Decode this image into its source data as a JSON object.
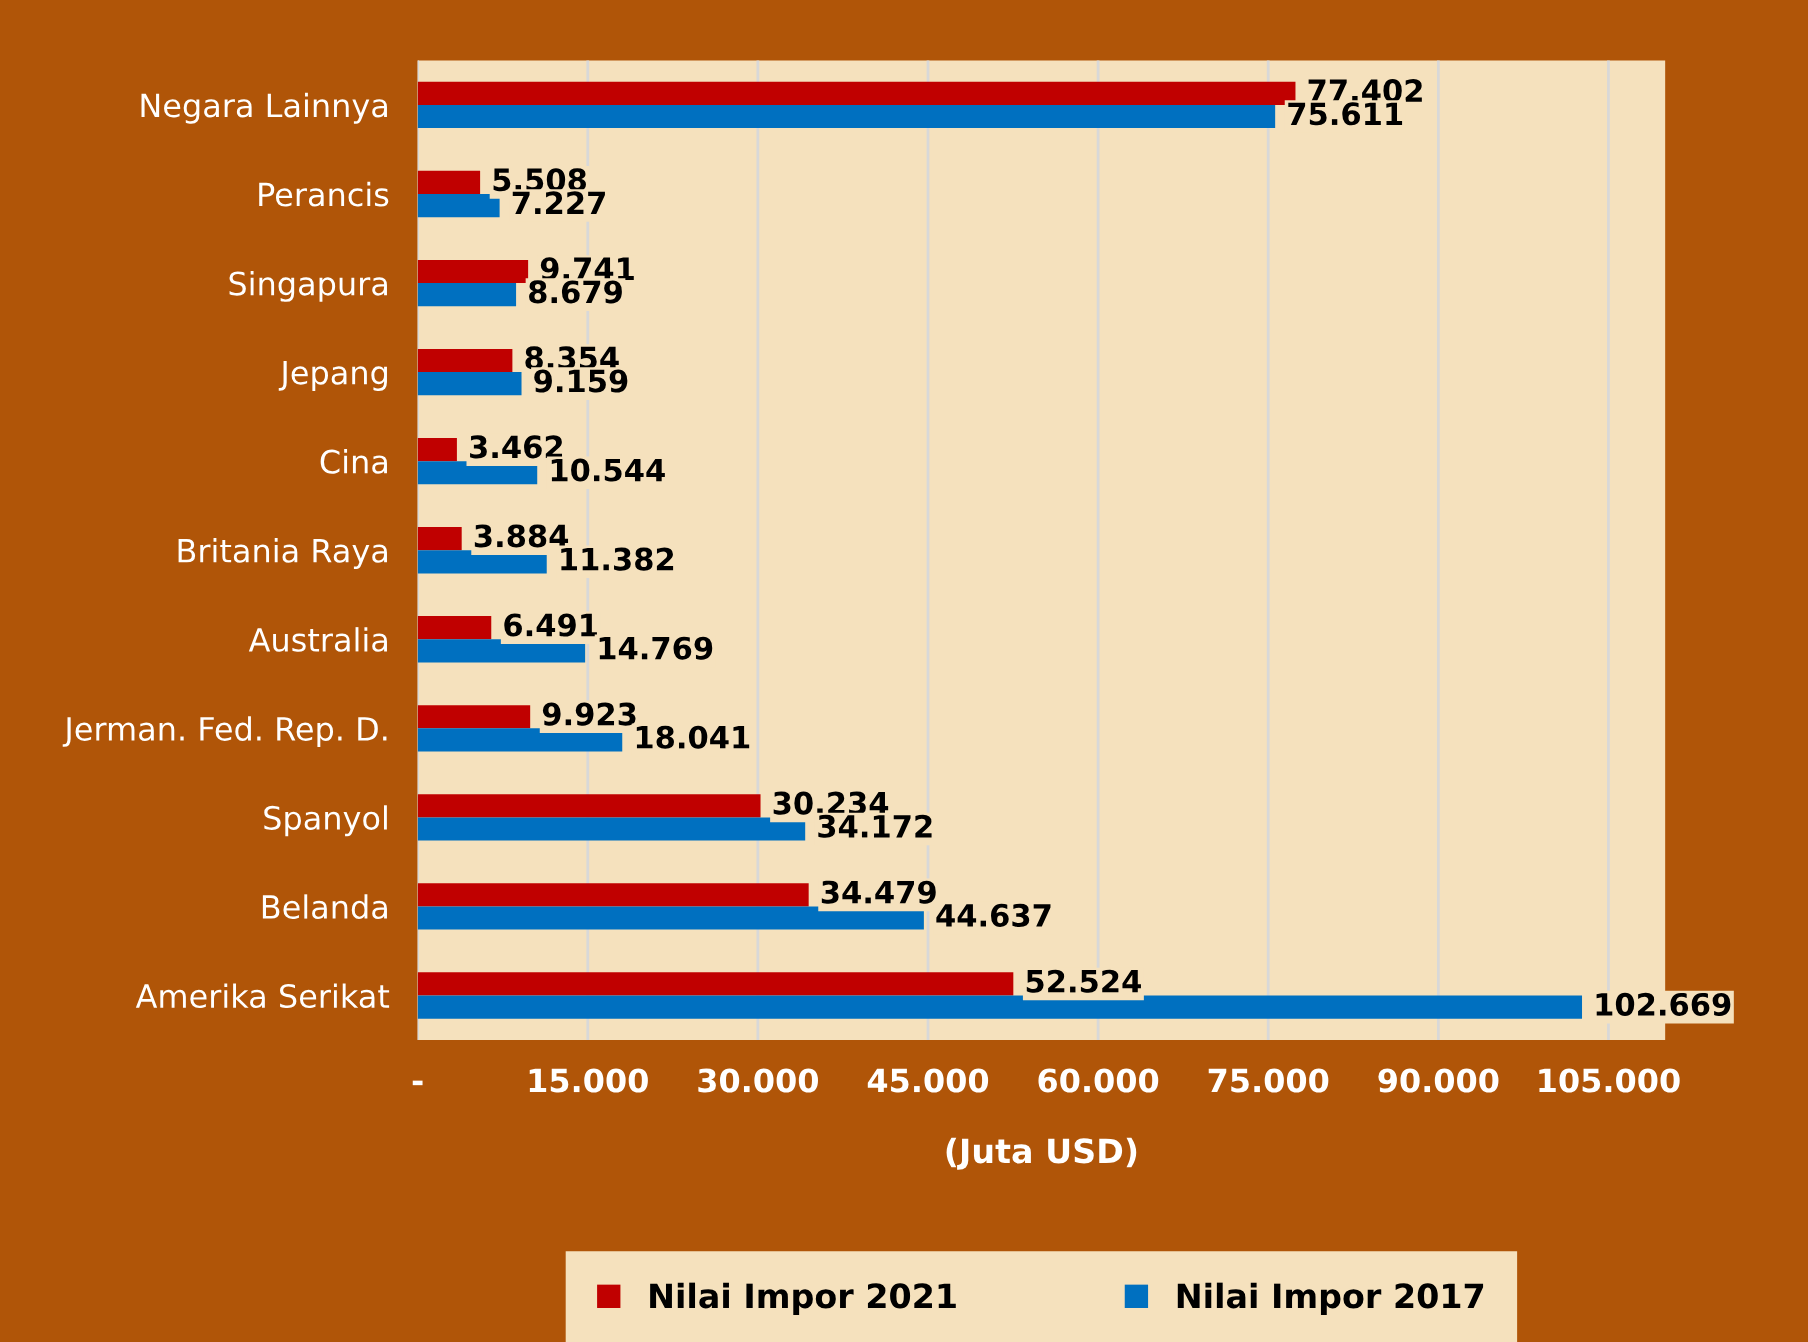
{
  "chart_data": {
    "type": "bar",
    "orientation": "horizontal",
    "xlabel": "(Juta USD)",
    "categories": [
      "Negara Lainnya",
      "Perancis",
      "Singapura",
      "Jepang",
      "Cina",
      "Britania Raya",
      "Australia",
      "Jerman. Fed. Rep. D.",
      "Spanyol",
      "Belanda",
      "Amerika Serikat"
    ],
    "series": [
      {
        "name": "Nilai Impor 2021",
        "color": "#c00000",
        "values": [
          77402,
          5508,
          9741,
          8354,
          3462,
          3884,
          6491,
          9923,
          30234,
          34479,
          52524
        ],
        "value_labels": [
          "77.402",
          "5.508",
          "9.741",
          "8.354",
          "3.462",
          "3.884",
          "6.491",
          "9.923",
          "30.234",
          "34.479",
          "52.524"
        ]
      },
      {
        "name": "Nilai Impor 2017",
        "color": "#0070c0",
        "values": [
          75611,
          7227,
          8679,
          9159,
          10544,
          11382,
          14769,
          18041,
          34172,
          44637,
          102669
        ],
        "value_labels": [
          "75.611",
          "7.227",
          "8.679",
          "9.159",
          "10.544",
          "11.382",
          "14.769",
          "18.041",
          "34.172",
          "44.637",
          "102.669"
        ]
      }
    ],
    "xlim": [
      0,
      110000
    ],
    "xticks": [
      {
        "value": 0,
        "label": "-"
      },
      {
        "value": 15000,
        "label": "15.000"
      },
      {
        "value": 30000,
        "label": "30.000"
      },
      {
        "value": 45000,
        "label": "45.000"
      },
      {
        "value": 60000,
        "label": "60.000"
      },
      {
        "value": 75000,
        "label": "75.000"
      },
      {
        "value": 90000,
        "label": "90.000"
      },
      {
        "value": 105000,
        "label": "105.000"
      }
    ],
    "grid": "x",
    "legend": "bottom"
  }
}
